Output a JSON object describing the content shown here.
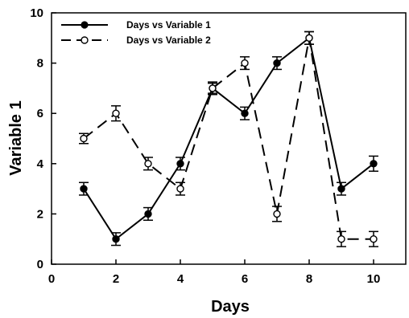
{
  "chart_data": {
    "type": "line",
    "title": "",
    "xlabel": "Days",
    "ylabel": "Variable 1",
    "xlim": [
      0,
      11
    ],
    "ylim": [
      0,
      10
    ],
    "xticks": [
      0,
      2,
      4,
      6,
      8,
      10
    ],
    "yticks": [
      0,
      2,
      4,
      6,
      8,
      10
    ],
    "xtick_labels": [
      "0",
      "2",
      "4",
      "6",
      "8",
      "10"
    ],
    "ytick_labels": [
      "0",
      "2",
      "4",
      "6",
      "8",
      "10"
    ],
    "grid": false,
    "legend_position": "top-left",
    "series": [
      {
        "name": "Days vs Variable 1",
        "style": "solid",
        "marker": "filled-circle",
        "color": "#000000",
        "x": [
          1,
          2,
          3,
          4,
          5,
          6,
          7,
          8,
          9,
          10
        ],
        "y": [
          3,
          1,
          2,
          4,
          7,
          6,
          8,
          9,
          3,
          4
        ],
        "err": [
          0.25,
          0.25,
          0.25,
          0.25,
          0.25,
          0.25,
          0.25,
          0.25,
          0.25,
          0.3
        ]
      },
      {
        "name": "Days vs Variable 2",
        "style": "dashed",
        "marker": "open-circle",
        "color": "#000000",
        "x": [
          1,
          2,
          3,
          4,
          5,
          6,
          7,
          8,
          9,
          10
        ],
        "y": [
          5,
          6,
          4,
          3,
          7,
          8,
          2,
          9,
          1,
          1
        ],
        "err": [
          0.2,
          0.3,
          0.25,
          0.25,
          0.2,
          0.25,
          0.3,
          0.25,
          0.3,
          0.3
        ]
      }
    ]
  }
}
